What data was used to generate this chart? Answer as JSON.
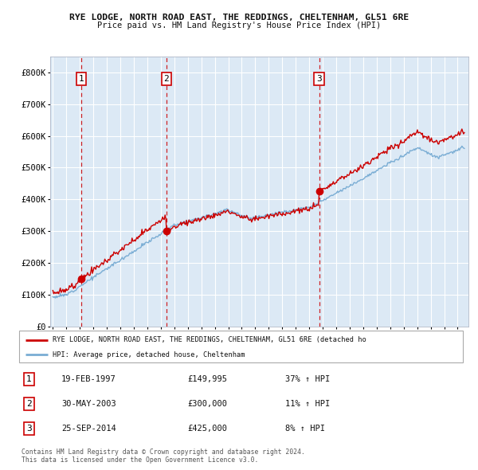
{
  "title1": "RYE LODGE, NORTH ROAD EAST, THE REDDINGS, CHELTENHAM, GL51 6RE",
  "title2": "Price paid vs. HM Land Registry's House Price Index (HPI)",
  "ylim": [
    0,
    850000
  ],
  "xlim_start": 1994.8,
  "xlim_end": 2025.8,
  "yticks": [
    0,
    100000,
    200000,
    300000,
    400000,
    500000,
    600000,
    700000,
    800000
  ],
  "ytick_labels": [
    "£0",
    "£100K",
    "£200K",
    "£300K",
    "£400K",
    "£500K",
    "£600K",
    "£700K",
    "£800K"
  ],
  "sales": [
    {
      "num": 1,
      "year": 1997.12,
      "price": 149995
    },
    {
      "num": 2,
      "year": 2003.41,
      "price": 300000
    },
    {
      "num": 3,
      "year": 2014.73,
      "price": 425000
    }
  ],
  "legend_property_label": "RYE LODGE, NORTH ROAD EAST, THE REDDINGS, CHELTENHAM, GL51 6RE (detached ho",
  "legend_hpi_label": "HPI: Average price, detached house, Cheltenham",
  "table_rows": [
    {
      "num": 1,
      "date": "19-FEB-1997",
      "price": "£149,995",
      "hpi": "37% ↑ HPI"
    },
    {
      "num": 2,
      "date": "30-MAY-2003",
      "price": "£300,000",
      "hpi": "11% ↑ HPI"
    },
    {
      "num": 3,
      "date": "25-SEP-2014",
      "price": "£425,000",
      "hpi": "8% ↑ HPI"
    }
  ],
  "footer1": "Contains HM Land Registry data © Crown copyright and database right 2024.",
  "footer2": "This data is licensed under the Open Government Licence v3.0.",
  "property_line_color": "#cc0000",
  "hpi_line_color": "#7aadd4",
  "plot_bg_color": "#dce9f5",
  "grid_color": "#ffffff",
  "sale_marker_color": "#cc0000",
  "dashed_line_color": "#cc0000",
  "label_box_edge": "#cc0000",
  "fig_bg_color": "#ffffff"
}
